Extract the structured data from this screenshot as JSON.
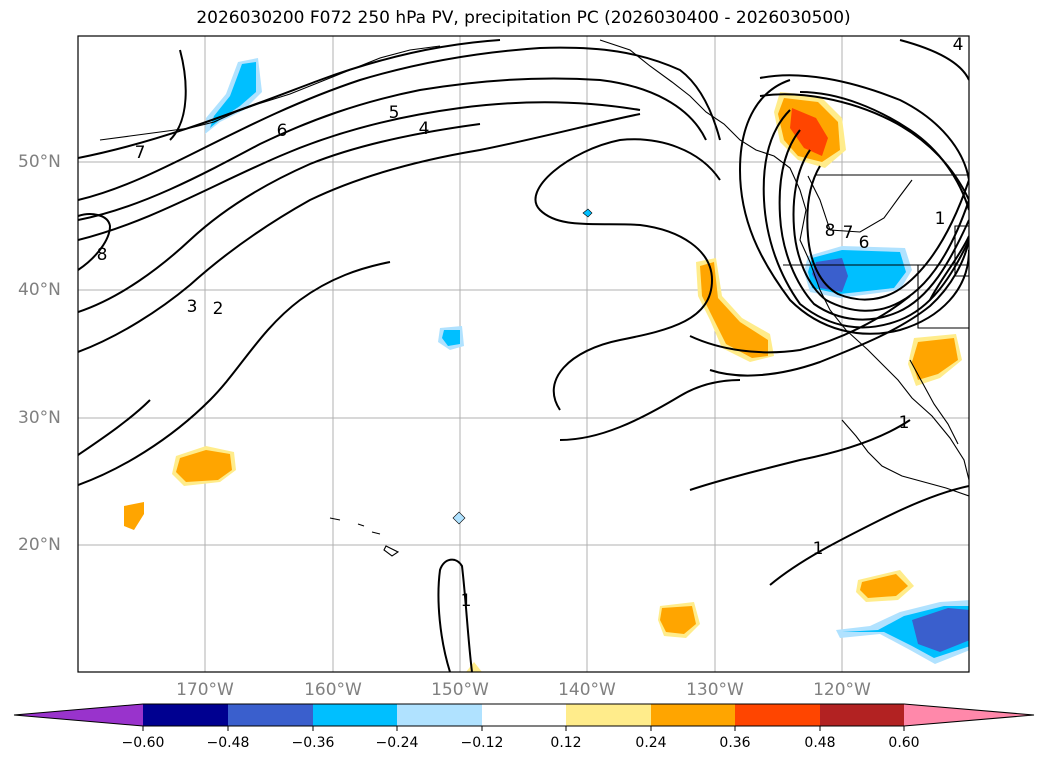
{
  "title": "2026030200 F072 250 hPa PV, precipitation PC (2026030400 - 2026030500)",
  "axes": {
    "lat_ticks": [
      "50°N",
      "40°N",
      "30°N",
      "20°N"
    ],
    "lon_ticks": [
      "170°W",
      "160°W",
      "150°W",
      "140°W",
      "130°W",
      "120°W"
    ]
  },
  "colorbar": {
    "ticks": [
      "−0.60",
      "−0.48",
      "−0.36",
      "−0.24",
      "−0.12",
      "0.12",
      "0.24",
      "0.36",
      "0.48",
      "0.60"
    ],
    "colors": [
      "#9933cc",
      "#000090",
      "#3a5fcd",
      "#00bfff",
      "#b0e2ff",
      "#ffffff",
      "#ffec8b",
      "#ffa500",
      "#ff4500",
      "#b22222",
      "#ff88aa"
    ]
  },
  "contour_labels": [
    "7",
    "6",
    "5",
    "4",
    "8",
    "3",
    "2",
    "1",
    "1",
    "8",
    "7",
    "6",
    "1",
    "1",
    "4"
  ]
}
